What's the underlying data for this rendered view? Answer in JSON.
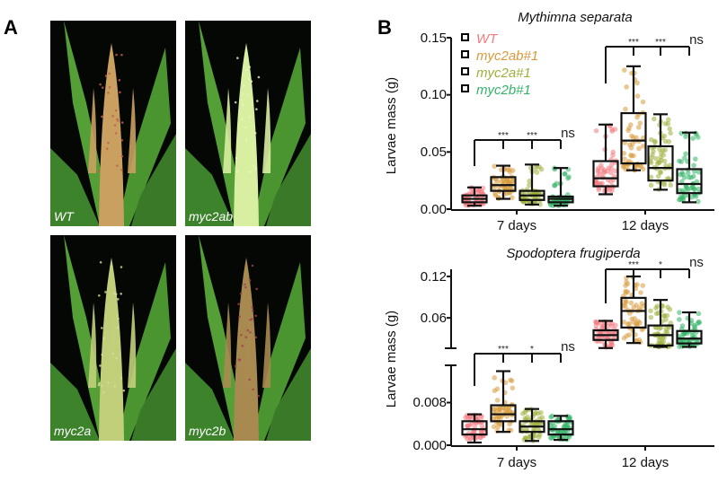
{
  "panel_a": {
    "letter": "A",
    "photos": [
      {
        "label": "WT",
        "tassel": "#c9a060",
        "tip": "#c0604a"
      },
      {
        "label": "myc2ab",
        "tassel": "#d8eea0",
        "tip": "#e8f5b8"
      },
      {
        "label": "myc2a",
        "tassel": "#c2cf7a",
        "tip": "#d6dc98"
      },
      {
        "label": "myc2b",
        "tassel": "#a88a50",
        "tip": "#a04050"
      }
    ]
  },
  "panel_b": {
    "letter": "B"
  },
  "chart_data": [
    {
      "type": "box",
      "title": "Mythimna separata",
      "ylabel": "Larvae  mass (g)",
      "categories": [
        "7 days",
        "12 days"
      ],
      "yticks": [
        "0.00",
        "0.05",
        "0.10",
        "0.15"
      ],
      "ylim": [
        0,
        0.15
      ],
      "legend": {
        "placement": "top-left",
        "entries": [
          "WT",
          "myc2ab#1",
          "myc2a#1",
          "myc2b#1"
        ]
      },
      "colors": [
        "#f27b82",
        "#d79a3c",
        "#9fae3c",
        "#34b467"
      ],
      "series": [
        {
          "name": "WT",
          "boxes": [
            {
              "min": 0.003,
              "q1": 0.006,
              "median": 0.009,
              "q3": 0.012,
              "max": 0.019
            },
            {
              "min": 0.013,
              "q1": 0.02,
              "median": 0.027,
              "q3": 0.042,
              "max": 0.074
            }
          ]
        },
        {
          "name": "myc2ab#1",
          "boxes": [
            {
              "min": 0.009,
              "q1": 0.016,
              "median": 0.021,
              "q3": 0.028,
              "max": 0.038
            },
            {
              "min": 0.034,
              "q1": 0.04,
              "median": 0.06,
              "q3": 0.084,
              "max": 0.125
            }
          ]
        },
        {
          "name": "myc2a#1",
          "boxes": [
            {
              "min": 0.004,
              "q1": 0.008,
              "median": 0.012,
              "q3": 0.016,
              "max": 0.039
            },
            {
              "min": 0.017,
              "q1": 0.025,
              "median": 0.036,
              "q3": 0.055,
              "max": 0.083
            }
          ]
        },
        {
          "name": "myc2b#1",
          "boxes": [
            {
              "min": 0.003,
              "q1": 0.006,
              "median": 0.009,
              "q3": 0.011,
              "max": 0.036
            },
            {
              "min": 0.006,
              "q1": 0.014,
              "median": 0.022,
              "q3": 0.035,
              "max": 0.067
            }
          ]
        }
      ],
      "significance": [
        [
          "***",
          "***",
          "ns"
        ],
        [
          "***",
          "***",
          "ns"
        ]
      ]
    },
    {
      "type": "box",
      "title": "Spodoptera frugiperda",
      "ylabel": "Larvae  mass (g)",
      "categories": [
        "7 days",
        "12 days"
      ],
      "axis_break": true,
      "yticks_lower": [
        "0.000",
        "0.008"
      ],
      "yticks_upper": [
        "0.06",
        "0.12"
      ],
      "ylim_lower": [
        0,
        0.015
      ],
      "ylim_upper": [
        0.016,
        0.12
      ],
      "colors": [
        "#f27b82",
        "#d79a3c",
        "#9fae3c",
        "#34b467"
      ],
      "series": [
        {
          "name": "WT",
          "boxes": [
            {
              "min": 0.0005,
              "q1": 0.002,
              "median": 0.003,
              "q3": 0.0045,
              "max": 0.0058
            },
            {
              "min": 0.0163,
              "q1": 0.028,
              "median": 0.035,
              "q3": 0.042,
              "max": 0.0557
            }
          ]
        },
        {
          "name": "myc2ab#1",
          "boxes": [
            {
              "min": 0.0025,
              "q1": 0.0045,
              "median": 0.0058,
              "q3": 0.0075,
              "max": 0.0139
            },
            {
              "min": 0.0236,
              "q1": 0.046,
              "median": 0.07,
              "q3": 0.089,
              "max": 0.12
            }
          ]
        },
        {
          "name": "myc2a#1",
          "boxes": [
            {
              "min": 0.0008,
              "q1": 0.0025,
              "median": 0.0035,
              "q3": 0.0045,
              "max": 0.0068
            },
            {
              "min": 0.018,
              "q1": 0.02,
              "median": 0.035,
              "q3": 0.049,
              "max": 0.086
            }
          ]
        },
        {
          "name": "myc2b#1",
          "boxes": [
            {
              "min": 0.001,
              "q1": 0.002,
              "median": 0.003,
              "q3": 0.0045,
              "max": 0.0055
            },
            {
              "min": 0.018,
              "q1": 0.023,
              "median": 0.03,
              "q3": 0.041,
              "max": 0.068
            }
          ]
        }
      ],
      "significance": [
        [
          "***",
          "*",
          "ns"
        ],
        [
          "***",
          "*",
          "ns"
        ]
      ]
    }
  ]
}
